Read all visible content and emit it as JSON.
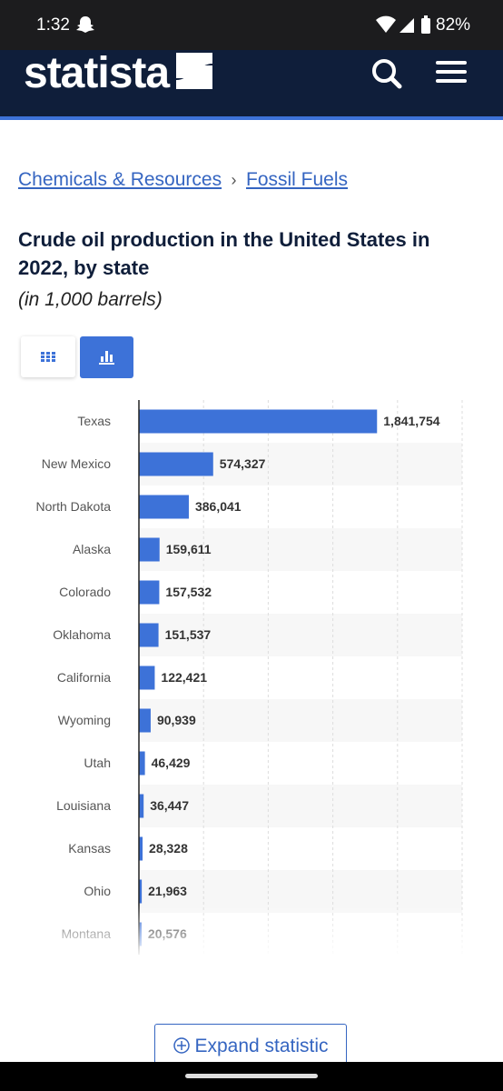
{
  "status_bar": {
    "time": "1:32",
    "battery": "82%"
  },
  "header": {
    "logo": "statista"
  },
  "breadcrumb": {
    "items": [
      "Chemicals & Resources",
      "Fossil Fuels"
    ],
    "separator": "›"
  },
  "chart_data": {
    "type": "bar",
    "orientation": "horizontal",
    "title": "Crude oil production in the United States in 2022, by state",
    "subtitle": "(in 1,000 barrels)",
    "categories": [
      "Texas",
      "New Mexico",
      "North Dakota",
      "Alaska",
      "Colorado",
      "Oklahoma",
      "California",
      "Wyoming",
      "Utah",
      "Louisiana",
      "Kansas",
      "Ohio",
      "Montana"
    ],
    "values": [
      1841754,
      574327,
      386041,
      159611,
      157532,
      151537,
      122421,
      90939,
      46429,
      36447,
      28328,
      21963,
      20576
    ],
    "value_labels": [
      "1,841,754",
      "574,327",
      "386,041",
      "159,611",
      "157,532",
      "151,537",
      "122,421",
      "90,939",
      "46,429",
      "36,447",
      "28,328",
      "21,963",
      "20,576"
    ],
    "color": "#3d72d8",
    "xlim": [
      0,
      2500000
    ],
    "xticks": [
      0,
      500000,
      1000000,
      1500000,
      2000000,
      2500000
    ],
    "grid": true
  },
  "button": {
    "label": "Expand statistic"
  }
}
